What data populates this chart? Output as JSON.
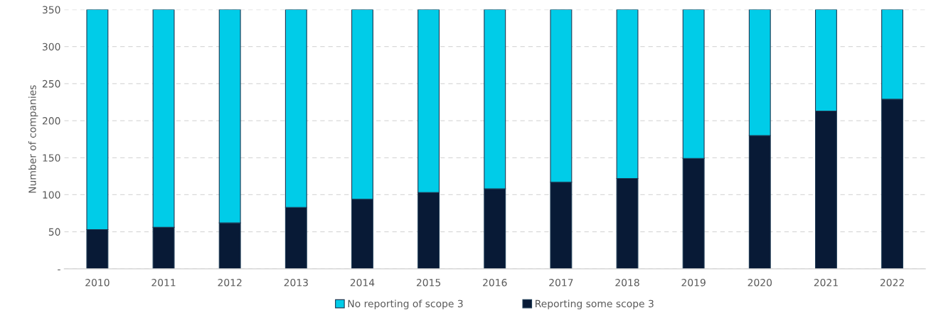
{
  "chart_data": {
    "type": "bar",
    "stacked": true,
    "ylabel": "Number of companies",
    "categories": [
      "2010",
      "2011",
      "2012",
      "2013",
      "2014",
      "2015",
      "2016",
      "2017",
      "2018",
      "2019",
      "2020",
      "2021",
      "2022"
    ],
    "series": [
      {
        "name": "Reporting some scope 3",
        "color": "#081a36",
        "values": [
          53,
          56,
          62,
          83,
          94,
          103,
          108,
          117,
          122,
          149,
          180,
          213,
          229
        ]
      },
      {
        "name": "No reporting of scope 3",
        "color": "#00cce8",
        "values": [
          297,
          294,
          288,
          267,
          256,
          247,
          242,
          233,
          228,
          201,
          170,
          137,
          121
        ]
      }
    ],
    "ylim": [
      0,
      350
    ],
    "yticks": [
      {
        "value": 0,
        "label": "-"
      },
      50,
      100,
      150,
      200,
      250,
      300,
      350
    ],
    "grid": "y",
    "legend": "bottom"
  }
}
